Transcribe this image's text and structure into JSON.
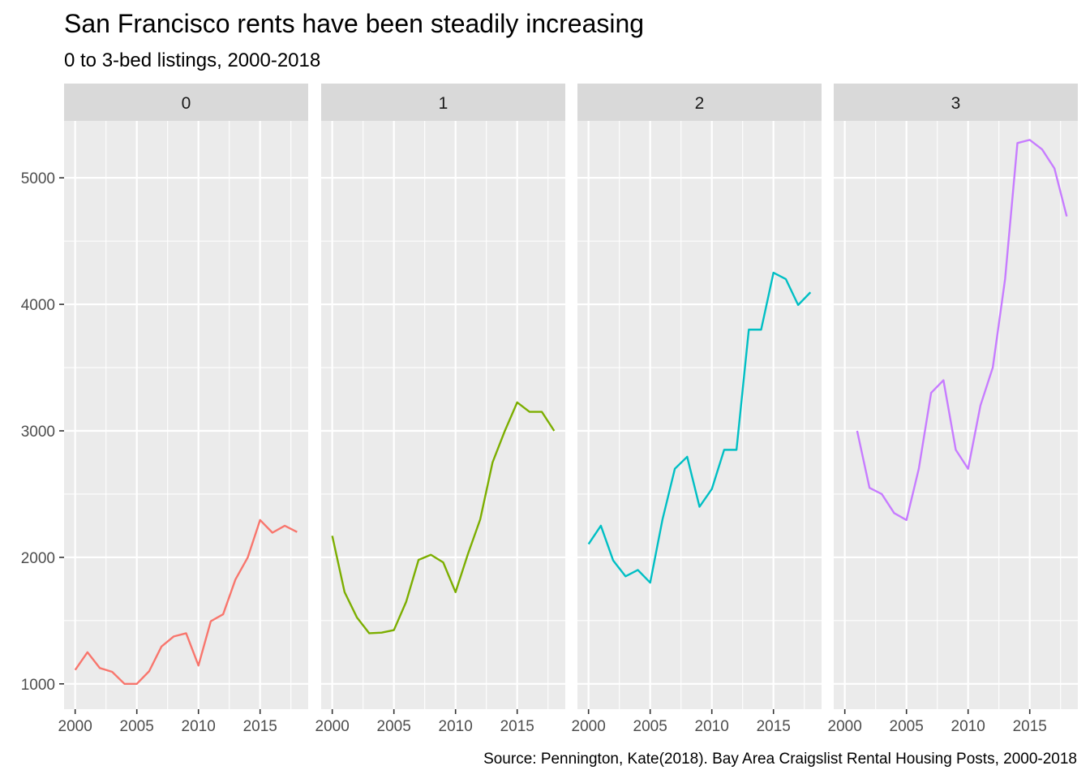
{
  "chart_data": {
    "type": "line",
    "title": "San Francisco rents have been steadily increasing",
    "subtitle": "0 to 3-bed listings, 2000-2018",
    "caption": "Source: Pennington, Kate(2018). Bay Area Craigslist Rental Housing Posts, 2000-2018",
    "xlabel": "",
    "ylabel": "",
    "xlim": [
      1999.1,
      2018.9
    ],
    "ylim": [
      800,
      5450
    ],
    "x_ticks": [
      2000,
      2005,
      2010,
      2015
    ],
    "x_tick_labels": [
      "2000",
      "2005",
      "2010",
      "2015"
    ],
    "y_ticks": [
      1000,
      2000,
      3000,
      4000,
      5000
    ],
    "y_tick_labels": [
      "1000",
      "2000",
      "3000",
      "4000",
      "5000"
    ],
    "grid": true,
    "legend": "none",
    "facets": [
      {
        "label": "0",
        "color": "#F8766D",
        "points": [
          [
            2000,
            1110
          ],
          [
            2001,
            1250
          ],
          [
            2002,
            1125
          ],
          [
            2003,
            1095
          ],
          [
            2004,
            1000
          ],
          [
            2005,
            1000
          ],
          [
            2006,
            1100
          ],
          [
            2007,
            1295
          ],
          [
            2008,
            1375
          ],
          [
            2009,
            1400
          ],
          [
            2010,
            1145
          ],
          [
            2011,
            1495
          ],
          [
            2012,
            1550
          ],
          [
            2013,
            1825
          ],
          [
            2014,
            2000
          ],
          [
            2015,
            2295
          ],
          [
            2016,
            2195
          ],
          [
            2017,
            2250
          ],
          [
            2018,
            2200
          ]
        ]
      },
      {
        "label": "1",
        "color": "#7CAE00",
        "points": [
          [
            2000,
            2170
          ],
          [
            2001,
            1725
          ],
          [
            2002,
            1525
          ],
          [
            2003,
            1400
          ],
          [
            2004,
            1405
          ],
          [
            2005,
            1425
          ],
          [
            2006,
            1650
          ],
          [
            2007,
            1980
          ],
          [
            2008,
            2020
          ],
          [
            2009,
            1960
          ],
          [
            2010,
            1725
          ],
          [
            2011,
            2025
          ],
          [
            2012,
            2300
          ],
          [
            2013,
            2750
          ],
          [
            2014,
            3000
          ],
          [
            2015,
            3225
          ],
          [
            2016,
            3150
          ],
          [
            2017,
            3150
          ],
          [
            2018,
            3000
          ]
        ]
      },
      {
        "label": "2",
        "color": "#00BFC4",
        "points": [
          [
            2000,
            2105
          ],
          [
            2001,
            2250
          ],
          [
            2002,
            1975
          ],
          [
            2003,
            1850
          ],
          [
            2004,
            1900
          ],
          [
            2005,
            1800
          ],
          [
            2006,
            2300
          ],
          [
            2007,
            2700
          ],
          [
            2008,
            2795
          ],
          [
            2009,
            2400
          ],
          [
            2010,
            2540
          ],
          [
            2011,
            2850
          ],
          [
            2012,
            2850
          ],
          [
            2013,
            3800
          ],
          [
            2014,
            3800
          ],
          [
            2015,
            4250
          ],
          [
            2016,
            4200
          ],
          [
            2017,
            3995
          ],
          [
            2018,
            4095
          ]
        ]
      },
      {
        "label": "3",
        "color": "#C77CFF",
        "points": [
          [
            2001,
            3000
          ],
          [
            2002,
            2550
          ],
          [
            2003,
            2500
          ],
          [
            2004,
            2350
          ],
          [
            2005,
            2295
          ],
          [
            2006,
            2700
          ],
          [
            2007,
            3300
          ],
          [
            2008,
            3400
          ],
          [
            2009,
            2850
          ],
          [
            2010,
            2700
          ],
          [
            2011,
            3200
          ],
          [
            2012,
            3500
          ],
          [
            2013,
            4200
          ],
          [
            2014,
            5275
          ],
          [
            2015,
            5300
          ],
          [
            2016,
            5225
          ],
          [
            2017,
            5075
          ],
          [
            2018,
            4695
          ]
        ]
      }
    ]
  }
}
